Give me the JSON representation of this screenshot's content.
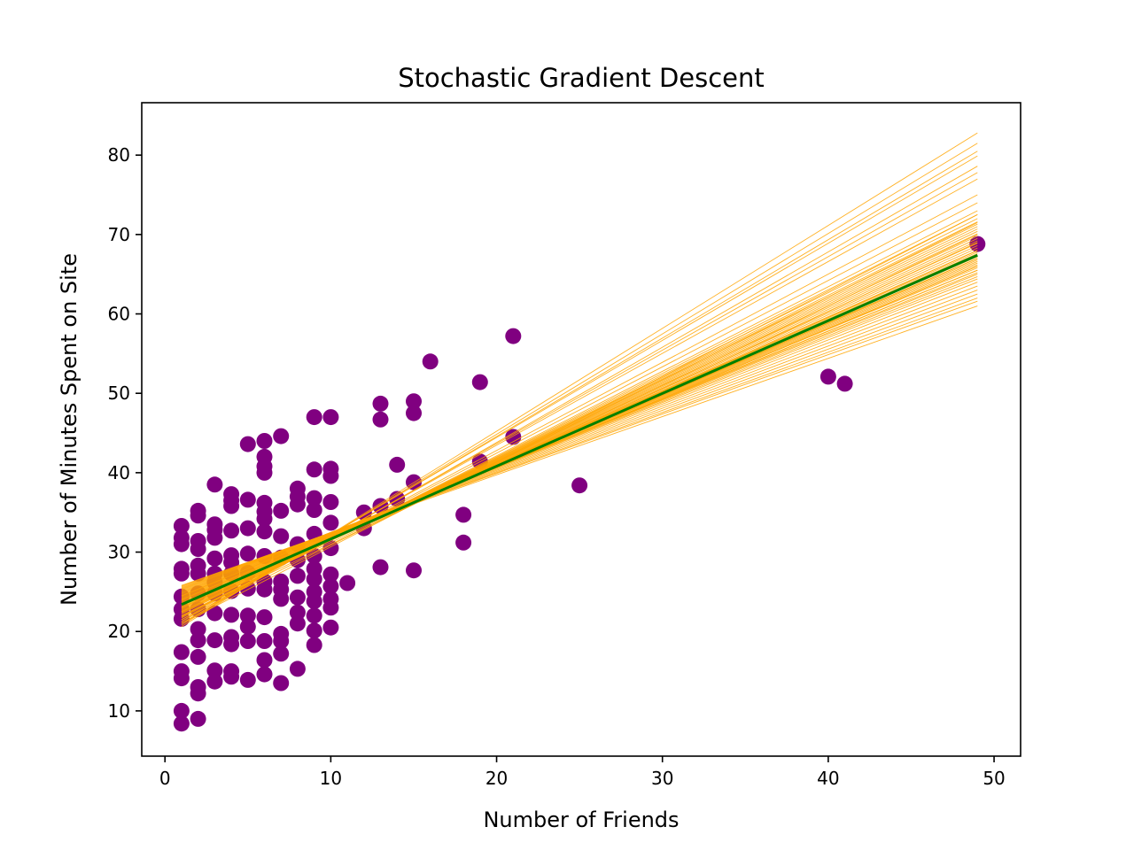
{
  "chart_data": {
    "type": "scatter",
    "title": "Stochastic Gradient Descent",
    "xlabel": "Number of Friends",
    "ylabel": "Number of Minutes Spent on Site",
    "xlim": [
      -1.4,
      51.6
    ],
    "ylim": [
      4.3,
      86.6
    ],
    "xticks": [
      0,
      10,
      20,
      30,
      40,
      50
    ],
    "yticks": [
      10,
      20,
      30,
      40,
      50,
      60,
      70,
      80
    ],
    "grid": false,
    "legend": "none",
    "colors": {
      "points": "#800080",
      "sgd_lines": "#ffa500",
      "fit_line": "#008000",
      "axes": "#000000"
    },
    "series": [
      {
        "kind": "scatter",
        "color": "#800080",
        "points": [
          [
            49,
            68.8
          ],
          [
            41,
            51.2
          ],
          [
            40,
            52.1
          ],
          [
            25,
            38.4
          ],
          [
            21,
            57.2
          ],
          [
            21,
            44.5
          ],
          [
            19,
            51.4
          ],
          [
            19,
            41.4
          ],
          [
            18,
            34.7
          ],
          [
            18,
            31.2
          ],
          [
            16,
            54.0
          ],
          [
            15,
            49.0
          ],
          [
            15,
            47.5
          ],
          [
            15,
            38.8
          ],
          [
            15,
            27.7
          ],
          [
            14,
            41.0
          ],
          [
            14,
            36.7
          ],
          [
            13,
            48.7
          ],
          [
            13,
            46.7
          ],
          [
            13,
            35.8
          ],
          [
            13,
            28.1
          ],
          [
            12,
            35.0
          ],
          [
            12,
            33.0
          ],
          [
            11,
            26.1
          ],
          [
            10,
            47.0
          ],
          [
            10,
            40.5
          ],
          [
            10,
            39.6
          ],
          [
            10,
            36.3
          ],
          [
            10,
            33.7
          ],
          [
            10,
            30.5
          ],
          [
            10,
            27.2
          ],
          [
            10,
            25.7
          ],
          [
            10,
            24.1
          ],
          [
            10,
            23.0
          ],
          [
            10,
            20.5
          ],
          [
            9,
            47.0
          ],
          [
            9,
            40.4
          ],
          [
            9,
            36.8
          ],
          [
            9,
            35.3
          ],
          [
            9,
            32.3
          ],
          [
            9,
            29.5
          ],
          [
            9,
            27.9
          ],
          [
            9,
            26.6
          ],
          [
            9,
            25.0
          ],
          [
            9,
            23.8
          ],
          [
            9,
            22.0
          ],
          [
            9,
            20.1
          ],
          [
            9,
            18.3
          ],
          [
            8,
            38.0
          ],
          [
            8,
            37.0
          ],
          [
            8,
            36.0
          ],
          [
            8,
            31.0
          ],
          [
            8,
            29.0
          ],
          [
            8,
            27.0
          ],
          [
            8,
            24.3
          ],
          [
            8,
            22.4
          ],
          [
            8,
            21.0
          ],
          [
            8,
            15.3
          ],
          [
            7,
            44.6
          ],
          [
            7,
            35.2
          ],
          [
            7,
            32.0
          ],
          [
            7,
            29.3
          ],
          [
            7,
            26.3
          ],
          [
            7,
            25.3
          ],
          [
            7,
            24.1
          ],
          [
            7,
            19.7
          ],
          [
            7,
            18.8
          ],
          [
            7,
            17.2
          ],
          [
            7,
            13.5
          ],
          [
            6,
            44.0
          ],
          [
            6,
            42.0
          ],
          [
            6,
            40.8
          ],
          [
            6,
            40.0
          ],
          [
            6,
            36.2
          ],
          [
            6,
            35.1
          ],
          [
            6,
            34.2
          ],
          [
            6,
            32.6
          ],
          [
            6,
            29.5
          ],
          [
            6,
            26.3
          ],
          [
            6,
            25.3
          ],
          [
            6,
            21.8
          ],
          [
            6,
            18.8
          ],
          [
            6,
            16.4
          ],
          [
            6,
            14.6
          ],
          [
            5,
            43.6
          ],
          [
            5,
            36.6
          ],
          [
            5,
            33.0
          ],
          [
            5,
            29.8
          ],
          [
            5,
            27.4
          ],
          [
            5,
            25.4
          ],
          [
            5,
            22.0
          ],
          [
            5,
            20.6
          ],
          [
            5,
            18.8
          ],
          [
            5,
            13.9
          ],
          [
            4,
            37.3
          ],
          [
            4,
            36.5
          ],
          [
            4,
            35.8
          ],
          [
            4,
            32.7
          ],
          [
            4,
            29.6
          ],
          [
            4,
            28.7
          ],
          [
            4,
            27.3
          ],
          [
            4,
            25.1
          ],
          [
            4,
            22.1
          ],
          [
            4,
            19.3
          ],
          [
            4,
            18.4
          ],
          [
            4,
            15.0
          ],
          [
            4,
            14.3
          ],
          [
            3,
            38.5
          ],
          [
            3,
            33.5
          ],
          [
            3,
            32.8
          ],
          [
            3,
            31.8
          ],
          [
            3,
            29.2
          ],
          [
            3,
            27.3
          ],
          [
            3,
            26.2
          ],
          [
            3,
            24.8
          ],
          [
            3,
            22.3
          ],
          [
            3,
            18.9
          ],
          [
            3,
            15.1
          ],
          [
            3,
            13.7
          ],
          [
            2,
            35.2
          ],
          [
            2,
            34.6
          ],
          [
            2,
            31.4
          ],
          [
            2,
            30.4
          ],
          [
            2,
            28.3
          ],
          [
            2,
            27.3
          ],
          [
            2,
            24.8
          ],
          [
            2,
            22.8
          ],
          [
            2,
            20.3
          ],
          [
            2,
            18.9
          ],
          [
            2,
            16.8
          ],
          [
            2,
            13.0
          ],
          [
            2,
            12.2
          ],
          [
            2,
            9.0
          ],
          [
            1,
            33.3
          ],
          [
            1,
            31.8
          ],
          [
            1,
            31.0
          ],
          [
            1,
            27.9
          ],
          [
            1,
            27.3
          ],
          [
            1,
            24.4
          ],
          [
            1,
            22.8
          ],
          [
            1,
            21.6
          ],
          [
            1,
            17.4
          ],
          [
            1,
            15.0
          ],
          [
            1,
            14.1
          ],
          [
            1,
            10.0
          ],
          [
            1,
            8.4
          ]
        ]
      },
      {
        "kind": "lines",
        "color": "#ffa500",
        "x_range": [
          1,
          49
        ],
        "lines": [
          [
            20.6,
            82.8
          ],
          [
            20.8,
            81.5
          ],
          [
            21.0,
            80.5
          ],
          [
            21.2,
            79.9
          ],
          [
            21.0,
            78.6
          ],
          [
            21.3,
            77.8
          ],
          [
            21.5,
            77.0
          ],
          [
            21.7,
            75.0
          ],
          [
            21.8,
            74.0
          ],
          [
            21.9,
            73.0
          ],
          [
            22.0,
            72.5
          ],
          [
            22.2,
            72.0
          ],
          [
            22.3,
            71.6
          ],
          [
            22.4,
            71.3
          ],
          [
            22.5,
            71.0
          ],
          [
            22.6,
            70.7
          ],
          [
            22.7,
            70.4
          ],
          [
            22.8,
            70.1
          ],
          [
            22.9,
            69.8
          ],
          [
            23.0,
            69.5
          ],
          [
            23.1,
            69.2
          ],
          [
            23.2,
            68.9
          ],
          [
            23.3,
            68.6
          ],
          [
            23.4,
            68.3
          ],
          [
            23.5,
            68.0
          ],
          [
            23.6,
            67.8
          ],
          [
            23.7,
            67.6
          ],
          [
            23.8,
            67.4
          ],
          [
            23.9,
            67.2
          ],
          [
            24.0,
            67.0
          ],
          [
            24.1,
            66.8
          ],
          [
            24.2,
            66.6
          ],
          [
            24.3,
            66.4
          ],
          [
            24.4,
            66.2
          ],
          [
            24.5,
            66.0
          ],
          [
            24.6,
            65.8
          ],
          [
            24.7,
            65.5
          ],
          [
            24.8,
            65.2
          ],
          [
            24.9,
            65.0
          ],
          [
            25.0,
            64.7
          ],
          [
            25.1,
            64.4
          ],
          [
            25.2,
            64.0
          ],
          [
            25.3,
            63.5
          ],
          [
            25.4,
            63.0
          ],
          [
            25.5,
            62.5
          ],
          [
            25.6,
            62.0
          ],
          [
            25.7,
            61.6
          ],
          [
            25.8,
            61.0
          ],
          [
            22.0,
            70.0
          ],
          [
            22.5,
            69.0
          ],
          [
            23.0,
            68.0
          ],
          [
            23.5,
            67.0
          ],
          [
            24.0,
            66.0
          ],
          [
            24.5,
            65.5
          ],
          [
            21.5,
            71.5
          ],
          [
            21.0,
            72.5
          ]
        ]
      },
      {
        "kind": "line",
        "color": "#008000",
        "x": [
          1,
          49
        ],
        "y": [
          23.4,
          67.4
        ]
      }
    ]
  }
}
